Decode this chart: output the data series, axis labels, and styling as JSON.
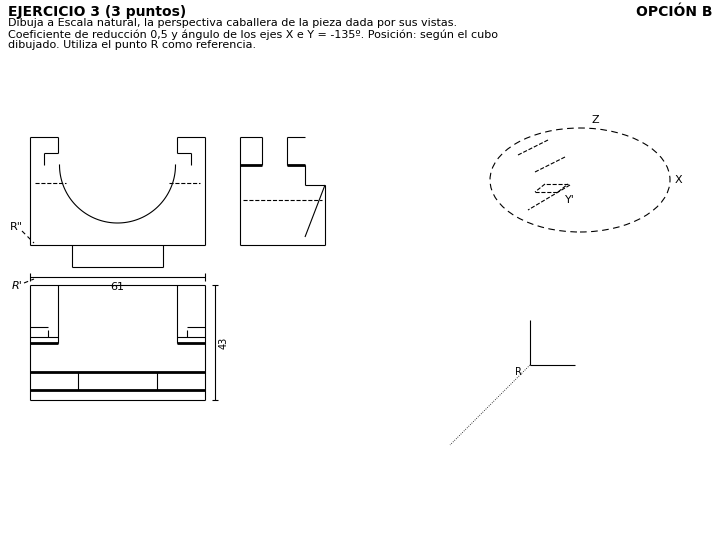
{
  "title_left": "EJERCICIO 3 (3 puntos)",
  "title_right": "OPCIÓN B",
  "subtitle1": "Dibuja a Escala natural, la perspectiva caballera de la pieza dada por sus vistas.",
  "subtitle2": "Coeficiente de reducción 0,5 y ángulo de los ejes X e Y = -135º. Posición: según el cubo",
  "subtitle3": "dibujado. Utiliza el punto R como referencia.",
  "bg_color": "#ffffff",
  "line_color": "#000000"
}
